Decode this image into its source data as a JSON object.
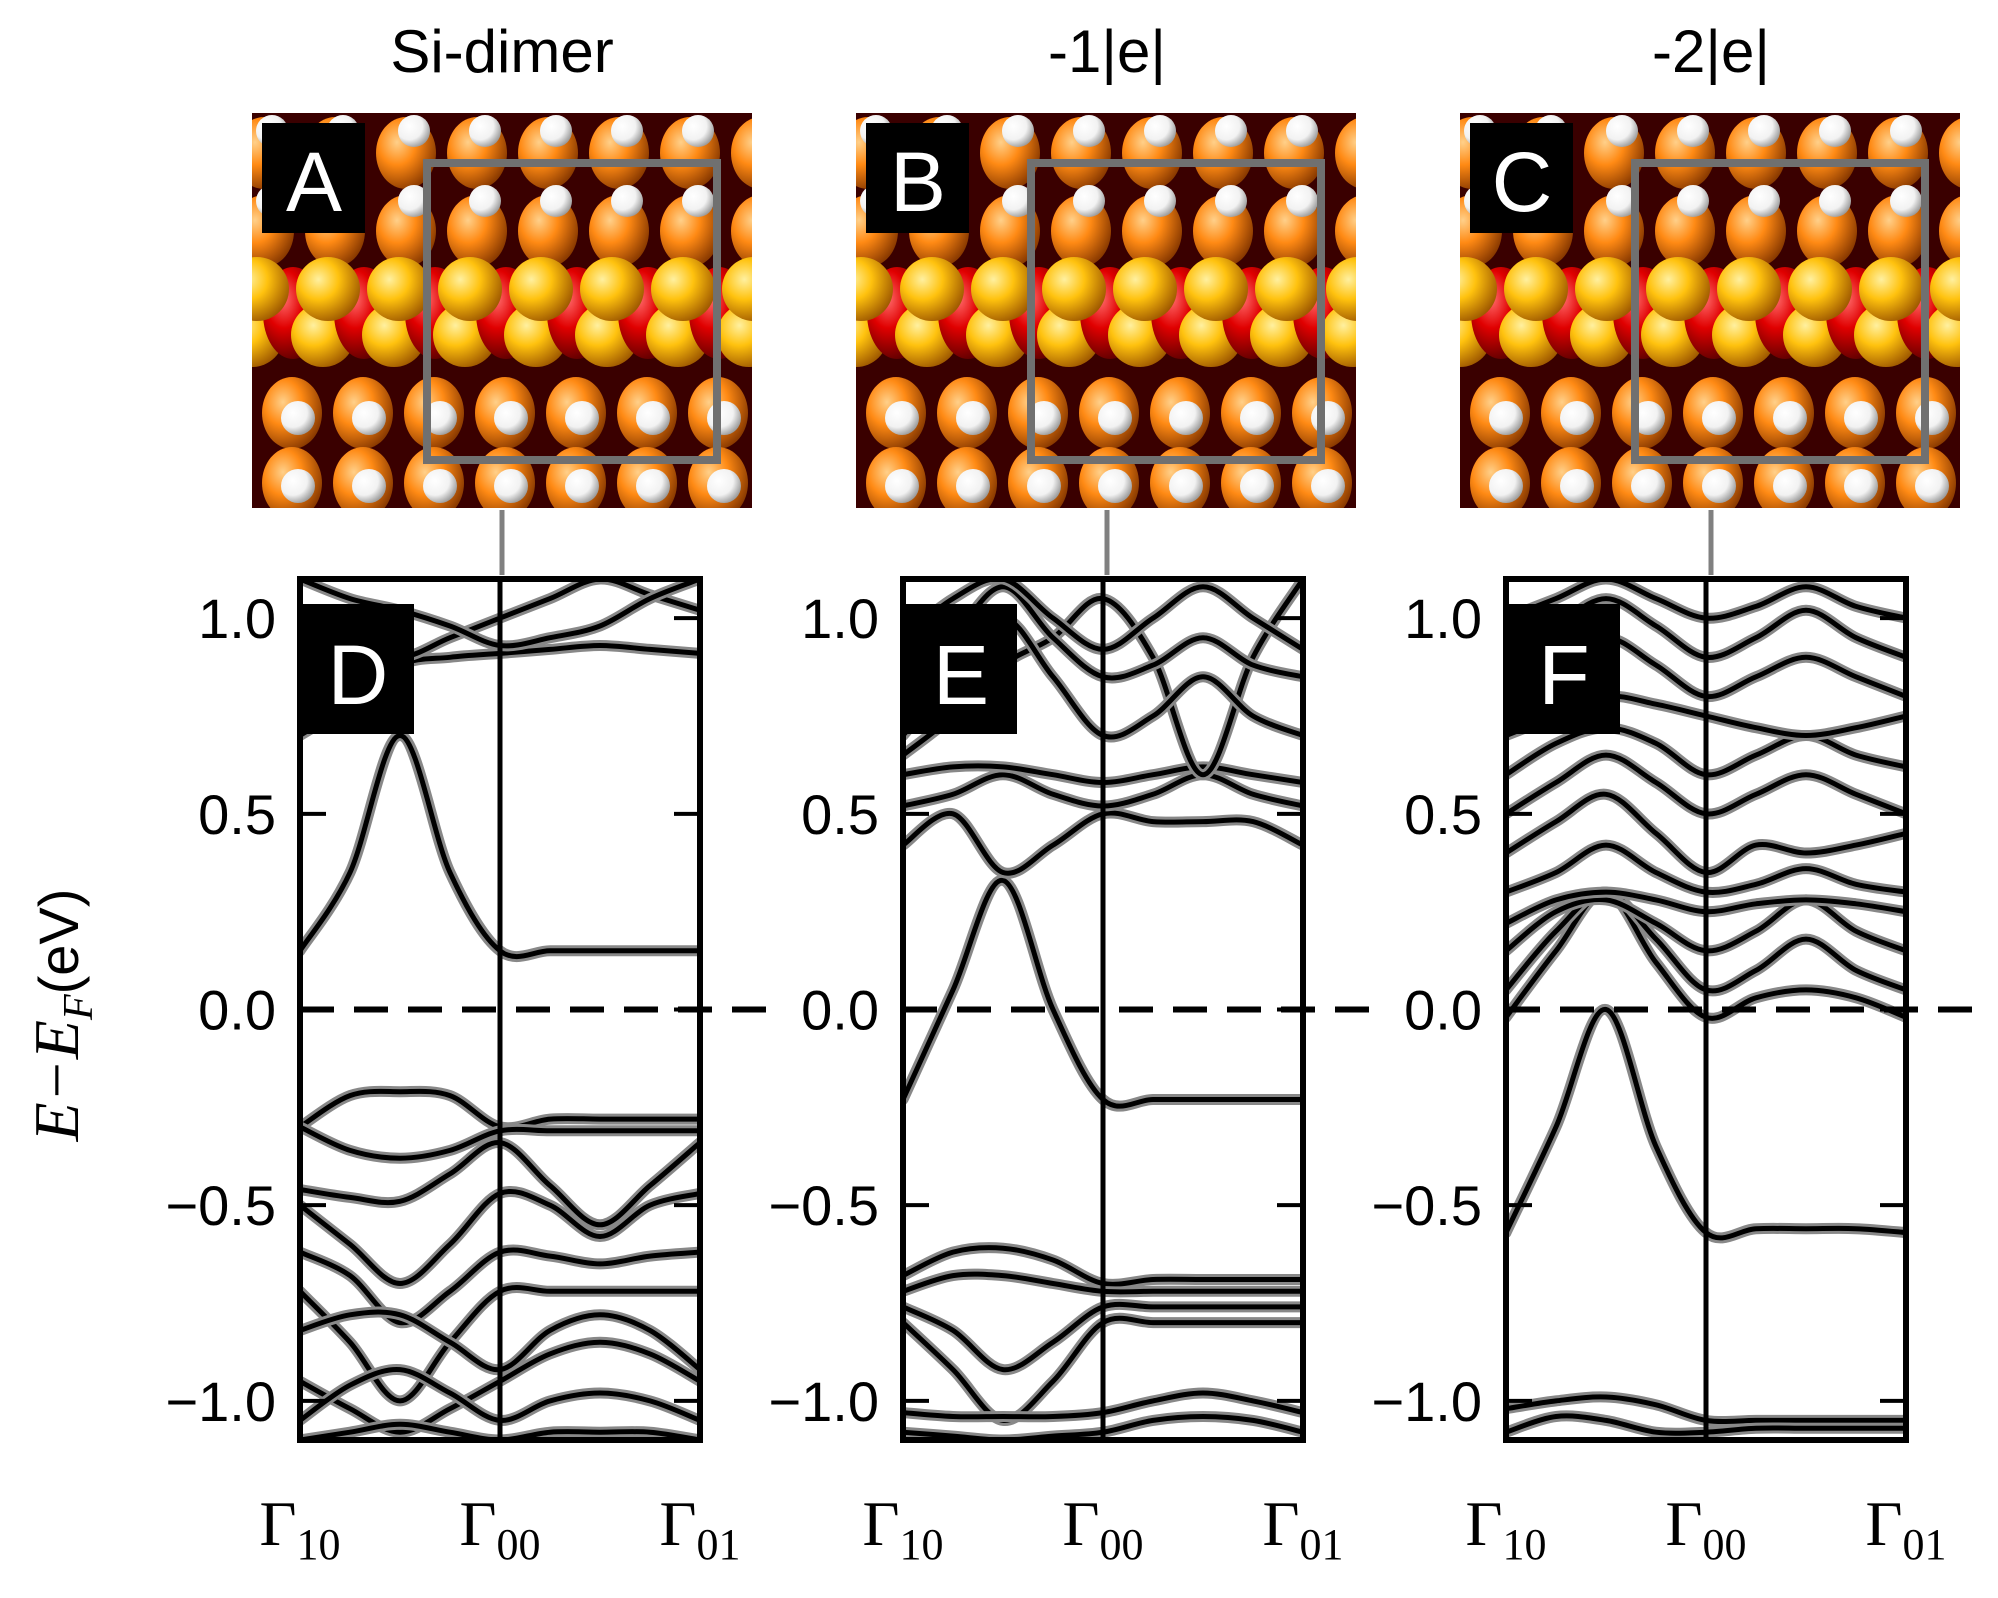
{
  "figure": {
    "ylabel_main": "E−E",
    "ylabel_sub": "F",
    "ylabel_unit": "(eV)"
  },
  "colors": {
    "band_line": "#000000",
    "band_halo": "#888888",
    "connector": "#808080",
    "si_orange": "#ff8a14",
    "si_red": "#e00000",
    "si_yellow": "#ffc20e",
    "hydrogen": "#ffffff",
    "background_dark": "#3a0000",
    "cell_box": "#707070"
  },
  "panels": [
    {
      "title": "Si-dimer",
      "structure_label": "A",
      "bands_label": "D"
    },
    {
      "title": "-1|e|",
      "structure_label": "B",
      "bands_label": "E"
    },
    {
      "title": "-2|e|",
      "structure_label": "C",
      "bands_label": "F"
    }
  ],
  "chart_data": [
    {
      "type": "line",
      "panel": "D",
      "ylabel": "E−E_F (eV)",
      "ylim": [
        -1.1,
        1.1
      ],
      "yticks": [
        "−1.0",
        "−0.5",
        "0.0",
        "0.5",
        "1.0"
      ],
      "ytick_values": [
        -1.0,
        -0.5,
        0.0,
        0.5,
        1.0
      ],
      "xticks": [
        {
          "main": "Γ",
          "sub": "10"
        },
        {
          "main": "Γ",
          "sub": "00"
        },
        {
          "main": "Γ",
          "sub": "01"
        }
      ],
      "x_range": [
        0,
        2
      ],
      "fermi_level": 0.0,
      "series": [
        {
          "x": [
            0,
            0.25,
            0.5,
            0.75,
            1.0,
            1.25,
            1.5,
            1.75,
            2.0
          ],
          "y": [
            0.15,
            0.35,
            0.7,
            0.35,
            0.15,
            0.15,
            0.15,
            0.15,
            0.15
          ]
        },
        {
          "x": [
            0,
            0.25,
            0.5,
            0.75,
            1.0,
            1.25,
            1.5,
            1.75,
            2.0
          ],
          "y": [
            0.7,
            0.78,
            0.88,
            0.9,
            0.91,
            0.92,
            0.93,
            0.92,
            0.91
          ]
        },
        {
          "x": [
            0,
            0.25,
            0.5,
            0.75,
            1.0,
            1.25,
            1.5,
            1.75,
            2.0
          ],
          "y": [
            0.98,
            0.94,
            0.9,
            0.95,
            1.0,
            1.05,
            1.1,
            1.06,
            1.02
          ]
        },
        {
          "x": [
            0,
            0.25,
            0.5,
            0.75,
            1.0,
            1.25,
            1.5,
            1.75,
            2.0
          ],
          "y": [
            1.1,
            1.05,
            1.02,
            0.98,
            0.93,
            0.95,
            0.98,
            1.05,
            1.1
          ]
        },
        {
          "x": [
            0,
            0.25,
            0.5,
            0.75,
            1.0,
            1.25,
            1.5,
            1.75,
            2.0
          ],
          "y": [
            -0.3,
            -0.22,
            -0.21,
            -0.22,
            -0.3,
            -0.28,
            -0.28,
            -0.28,
            -0.28
          ]
        },
        {
          "x": [
            0,
            0.25,
            0.5,
            0.75,
            1.0,
            1.25,
            1.5,
            1.75,
            2.0
          ],
          "y": [
            -0.3,
            -0.36,
            -0.38,
            -0.36,
            -0.31,
            -0.31,
            -0.31,
            -0.31,
            -0.31
          ]
        },
        {
          "x": [
            0,
            0.25,
            0.5,
            0.75,
            1.0,
            1.25,
            1.5,
            1.75,
            2.0
          ],
          "y": [
            -0.46,
            -0.48,
            -0.49,
            -0.42,
            -0.34,
            -0.45,
            -0.55,
            -0.45,
            -0.34
          ]
        },
        {
          "x": [
            0,
            0.25,
            0.5,
            0.75,
            1.0,
            1.25,
            1.5,
            1.75,
            2.0
          ],
          "y": [
            -0.5,
            -0.6,
            -0.7,
            -0.6,
            -0.47,
            -0.5,
            -0.58,
            -0.5,
            -0.47
          ]
        },
        {
          "x": [
            0,
            0.25,
            0.5,
            0.75,
            1.0,
            1.25,
            1.5,
            1.75,
            2.0
          ],
          "y": [
            -0.62,
            -0.68,
            -0.8,
            -0.72,
            -0.62,
            -0.63,
            -0.65,
            -0.63,
            -0.62
          ]
        },
        {
          "x": [
            0,
            0.25,
            0.5,
            0.75,
            1.0,
            1.25,
            1.5,
            1.75,
            2.0
          ],
          "y": [
            -0.72,
            -0.85,
            -1.0,
            -0.85,
            -0.72,
            -0.72,
            -0.72,
            -0.72,
            -0.72
          ]
        },
        {
          "x": [
            0,
            0.25,
            0.5,
            0.75,
            1.0,
            1.25,
            1.5,
            1.75,
            2.0
          ],
          "y": [
            -0.82,
            -0.78,
            -0.78,
            -0.85,
            -0.92,
            -0.82,
            -0.78,
            -0.82,
            -0.92
          ]
        },
        {
          "x": [
            0,
            0.25,
            0.5,
            0.75,
            1.0,
            1.25,
            1.5,
            1.75,
            2.0
          ],
          "y": [
            -0.95,
            -1.02,
            -1.08,
            -1.02,
            -0.95,
            -0.88,
            -0.85,
            -0.88,
            -0.95
          ]
        },
        {
          "x": [
            0,
            0.25,
            0.5,
            0.75,
            1.0,
            1.25,
            1.5,
            1.75,
            2.0
          ],
          "y": [
            -1.05,
            -0.96,
            -0.92,
            -0.98,
            -1.05,
            -1.0,
            -0.98,
            -1.0,
            -1.05
          ]
        },
        {
          "x": [
            0,
            0.25,
            0.5,
            0.75,
            1.0,
            1.25,
            1.5,
            1.75,
            2.0
          ],
          "y": [
            -1.1,
            -1.08,
            -1.06,
            -1.08,
            -1.1,
            -1.08,
            -1.08,
            -1.08,
            -1.1
          ]
        }
      ]
    },
    {
      "type": "line",
      "panel": "E",
      "ylabel": "E−E_F (eV)",
      "ylim": [
        -1.1,
        1.1
      ],
      "yticks": [
        "−1.0",
        "−0.5",
        "0.0",
        "0.5",
        "1.0"
      ],
      "ytick_values": [
        -1.0,
        -0.5,
        0.0,
        0.5,
        1.0
      ],
      "xticks": [
        {
          "main": "Γ",
          "sub": "10"
        },
        {
          "main": "Γ",
          "sub": "00"
        },
        {
          "main": "Γ",
          "sub": "01"
        }
      ],
      "x_range": [
        0,
        2
      ],
      "fermi_level": 0.0,
      "series": [
        {
          "x": [
            0,
            0.25,
            0.5,
            0.75,
            1.0,
            1.25,
            1.5,
            1.75,
            2.0
          ],
          "y": [
            -0.23,
            0.05,
            0.33,
            0.0,
            -0.23,
            -0.23,
            -0.23,
            -0.23,
            -0.23
          ]
        },
        {
          "x": [
            0,
            0.25,
            0.5,
            0.75,
            1.0,
            1.25,
            1.5,
            1.75,
            2.0
          ],
          "y": [
            0.42,
            0.5,
            0.35,
            0.42,
            0.5,
            0.48,
            0.48,
            0.48,
            0.42
          ]
        },
        {
          "x": [
            0,
            0.25,
            0.5,
            0.75,
            1.0,
            1.25,
            1.5,
            1.75,
            2.0
          ],
          "y": [
            0.52,
            0.55,
            0.6,
            0.55,
            0.52,
            0.55,
            0.6,
            0.55,
            0.52
          ]
        },
        {
          "x": [
            0,
            0.25,
            0.5,
            0.75,
            1.0,
            1.25,
            1.5,
            1.75,
            2.0
          ],
          "y": [
            0.6,
            0.62,
            0.62,
            0.6,
            0.58,
            0.6,
            0.62,
            0.6,
            0.58
          ]
        },
        {
          "x": [
            0,
            0.25,
            0.5,
            0.75,
            1.0,
            1.25,
            1.5,
            1.75,
            2.0
          ],
          "y": [
            0.65,
            0.75,
            0.88,
            0.95,
            1.05,
            0.9,
            0.6,
            0.9,
            1.1
          ]
        },
        {
          "x": [
            0,
            0.25,
            0.5,
            0.75,
            1.0,
            1.25,
            1.5,
            1.75,
            2.0
          ],
          "y": [
            0.7,
            0.85,
            1.0,
            0.85,
            0.7,
            0.75,
            0.85,
            0.75,
            0.7
          ]
        },
        {
          "x": [
            0,
            0.25,
            0.5,
            0.75,
            1.0,
            1.25,
            1.5,
            1.75,
            2.0
          ],
          "y": [
            0.8,
            0.95,
            1.08,
            0.95,
            0.85,
            0.88,
            0.95,
            0.88,
            0.85
          ]
        },
        {
          "x": [
            0,
            0.25,
            0.5,
            0.75,
            1.0,
            1.25,
            1.5,
            1.75,
            2.0
          ],
          "y": [
            0.95,
            1.05,
            1.1,
            1.0,
            0.92,
            1.0,
            1.08,
            1.0,
            0.92
          ]
        },
        {
          "x": [
            0,
            0.25,
            0.5,
            0.75,
            1.0,
            1.25,
            1.5,
            1.75,
            2.0
          ],
          "y": [
            -0.68,
            -0.62,
            -0.61,
            -0.64,
            -0.7,
            -0.69,
            -0.69,
            -0.69,
            -0.69
          ]
        },
        {
          "x": [
            0,
            0.25,
            0.5,
            0.75,
            1.0,
            1.25,
            1.5,
            1.75,
            2.0
          ],
          "y": [
            -0.72,
            -0.68,
            -0.68,
            -0.7,
            -0.72,
            -0.72,
            -0.72,
            -0.72,
            -0.72
          ]
        },
        {
          "x": [
            0,
            0.25,
            0.5,
            0.75,
            1.0,
            1.25,
            1.5,
            1.75,
            2.0
          ],
          "y": [
            -0.76,
            -0.82,
            -0.92,
            -0.85,
            -0.76,
            -0.76,
            -0.76,
            -0.76,
            -0.76
          ]
        },
        {
          "x": [
            0,
            0.25,
            0.5,
            0.75,
            1.0,
            1.25,
            1.5,
            1.75,
            2.0
          ],
          "y": [
            -0.8,
            -0.92,
            -1.05,
            -0.95,
            -0.8,
            -0.8,
            -0.8,
            -0.8,
            -0.8
          ]
        },
        {
          "x": [
            0,
            0.25,
            0.5,
            0.75,
            1.0,
            1.25,
            1.5,
            1.75,
            2.0
          ],
          "y": [
            -1.03,
            -1.04,
            -1.04,
            -1.04,
            -1.03,
            -1.0,
            -0.98,
            -1.0,
            -1.03
          ]
        },
        {
          "x": [
            0,
            0.25,
            0.5,
            0.75,
            1.0,
            1.25,
            1.5,
            1.75,
            2.0
          ],
          "y": [
            -1.08,
            -1.09,
            -1.1,
            -1.09,
            -1.08,
            -1.05,
            -1.04,
            -1.05,
            -1.08
          ]
        }
      ]
    },
    {
      "type": "line",
      "panel": "F",
      "ylabel": "E−E_F (eV)",
      "ylim": [
        -1.1,
        1.1
      ],
      "yticks": [
        "−1.0",
        "−0.5",
        "0.0",
        "0.5",
        "1.0"
      ],
      "ytick_values": [
        -1.0,
        -0.5,
        0.0,
        0.5,
        1.0
      ],
      "xticks": [
        {
          "main": "Γ",
          "sub": "10"
        },
        {
          "main": "Γ",
          "sub": "00"
        },
        {
          "main": "Γ",
          "sub": "01"
        }
      ],
      "x_range": [
        0,
        2
      ],
      "fermi_level": 0.0,
      "series": [
        {
          "x": [
            0,
            0.25,
            0.5,
            0.75,
            1.0,
            1.25,
            1.5,
            1.75,
            2.0
          ],
          "y": [
            -0.57,
            -0.3,
            0.0,
            -0.35,
            -0.57,
            -0.56,
            -0.56,
            -0.56,
            -0.57
          ]
        },
        {
          "x": [
            0,
            0.25,
            0.5,
            0.75,
            1.0,
            1.25,
            1.5,
            1.75,
            2.0
          ],
          "y": [
            -0.02,
            0.15,
            0.3,
            0.12,
            -0.02,
            0.03,
            0.05,
            0.03,
            -0.02
          ]
        },
        {
          "x": [
            0,
            0.25,
            0.5,
            0.75,
            1.0,
            1.25,
            1.5,
            1.75,
            2.0
          ],
          "y": [
            0.05,
            0.2,
            0.3,
            0.18,
            0.05,
            0.1,
            0.18,
            0.1,
            0.05
          ]
        },
        {
          "x": [
            0,
            0.25,
            0.5,
            0.75,
            1.0,
            1.25,
            1.5,
            1.75,
            2.0
          ],
          "y": [
            0.15,
            0.25,
            0.28,
            0.22,
            0.15,
            0.2,
            0.28,
            0.2,
            0.15
          ]
        },
        {
          "x": [
            0,
            0.25,
            0.5,
            0.75,
            1.0,
            1.25,
            1.5,
            1.75,
            2.0
          ],
          "y": [
            0.22,
            0.28,
            0.3,
            0.28,
            0.25,
            0.27,
            0.28,
            0.27,
            0.25
          ]
        },
        {
          "x": [
            0,
            0.25,
            0.5,
            0.75,
            1.0,
            1.25,
            1.5,
            1.75,
            2.0
          ],
          "y": [
            0.3,
            0.35,
            0.42,
            0.35,
            0.3,
            0.32,
            0.36,
            0.32,
            0.3
          ]
        },
        {
          "x": [
            0,
            0.25,
            0.5,
            0.75,
            1.0,
            1.25,
            1.5,
            1.75,
            2.0
          ],
          "y": [
            0.4,
            0.48,
            0.55,
            0.45,
            0.35,
            0.42,
            0.4,
            0.42,
            0.45
          ]
        },
        {
          "x": [
            0,
            0.25,
            0.5,
            0.75,
            1.0,
            1.25,
            1.5,
            1.75,
            2.0
          ],
          "y": [
            0.5,
            0.58,
            0.65,
            0.58,
            0.5,
            0.55,
            0.6,
            0.55,
            0.5
          ]
        },
        {
          "x": [
            0,
            0.25,
            0.5,
            0.75,
            1.0,
            1.25,
            1.5,
            1.75,
            2.0
          ],
          "y": [
            0.6,
            0.68,
            0.72,
            0.68,
            0.6,
            0.65,
            0.7,
            0.65,
            0.62
          ]
        },
        {
          "x": [
            0,
            0.25,
            0.5,
            0.75,
            1.0,
            1.25,
            1.5,
            1.75,
            2.0
          ],
          "y": [
            0.7,
            0.75,
            0.8,
            0.78,
            0.75,
            0.72,
            0.7,
            0.72,
            0.75
          ]
        },
        {
          "x": [
            0,
            0.25,
            0.5,
            0.75,
            1.0,
            1.25,
            1.5,
            1.75,
            2.0
          ],
          "y": [
            0.8,
            0.88,
            0.95,
            0.88,
            0.8,
            0.85,
            0.9,
            0.85,
            0.8
          ]
        },
        {
          "x": [
            0,
            0.25,
            0.5,
            0.75,
            1.0,
            1.25,
            1.5,
            1.75,
            2.0
          ],
          "y": [
            0.9,
            0.98,
            1.05,
            0.98,
            0.9,
            0.95,
            1.02,
            0.95,
            0.9
          ]
        },
        {
          "x": [
            0,
            0.25,
            0.5,
            0.75,
            1.0,
            1.25,
            1.5,
            1.75,
            2.0
          ],
          "y": [
            1.0,
            1.05,
            1.1,
            1.05,
            1.0,
            1.03,
            1.08,
            1.03,
            1.0
          ]
        },
        {
          "x": [
            0,
            0.25,
            0.5,
            0.75,
            1.0,
            1.25,
            1.5,
            1.75,
            2.0
          ],
          "y": [
            -1.02,
            -1.0,
            -0.99,
            -1.01,
            -1.05,
            -1.05,
            -1.05,
            -1.05,
            -1.05
          ]
        },
        {
          "x": [
            0,
            0.25,
            0.5,
            0.75,
            1.0,
            1.25,
            1.5,
            1.75,
            2.0
          ],
          "y": [
            -1.08,
            -1.04,
            -1.05,
            -1.08,
            -1.08,
            -1.07,
            -1.07,
            -1.07,
            -1.07
          ]
        }
      ]
    }
  ]
}
